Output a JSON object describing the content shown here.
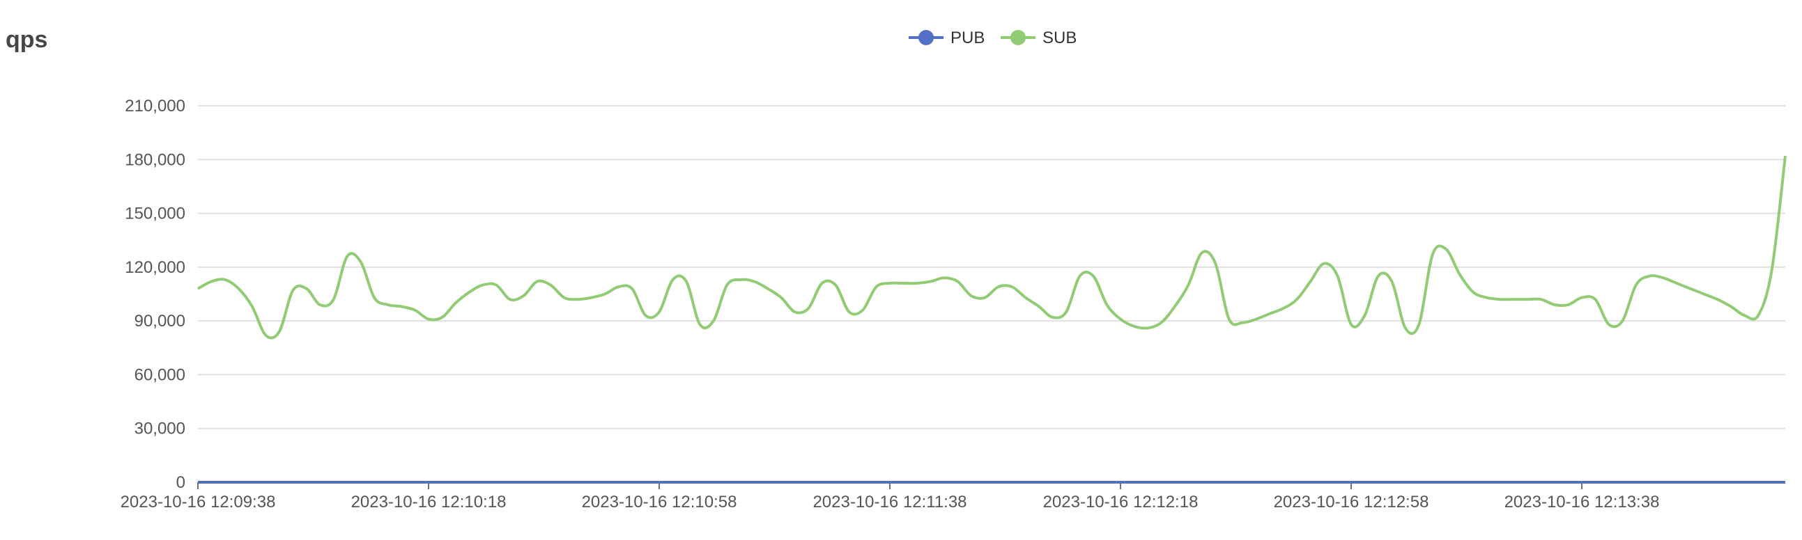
{
  "chart_data": {
    "type": "line",
    "title": "qps",
    "ylim": [
      0,
      210000
    ],
    "y_ticks": [
      "0",
      "30,000",
      "60,000",
      "90,000",
      "120,000",
      "150,000",
      "180,000",
      "210,000"
    ],
    "x_ticks": [
      "2023-10-16 12:09:38",
      "2023-10-16 12:10:18",
      "2023-10-16 12:10:58",
      "2023-10-16 12:11:38",
      "2023-10-16 12:12:18",
      "2023-10-16 12:12:58",
      "2023-10-16 12:13:38"
    ],
    "legend_position": "top-center",
    "grid": true,
    "series": [
      {
        "name": "PUB",
        "color": "#5470c6",
        "values": [
          0,
          0,
          0,
          0,
          0,
          0,
          0,
          0,
          0,
          0,
          0,
          0,
          0,
          0,
          0,
          0,
          0,
          0,
          0,
          0,
          0,
          0,
          0,
          0,
          0,
          0,
          0,
          0,
          0,
          0,
          0,
          0,
          0,
          0,
          0,
          0,
          0,
          0,
          0,
          0,
          0,
          0,
          0,
          0,
          0,
          0,
          0,
          0,
          0,
          0,
          0,
          0,
          0,
          0,
          0,
          0,
          0,
          0,
          0,
          0,
          0,
          0,
          0,
          0,
          0,
          0,
          0,
          0,
          0,
          0,
          0,
          0,
          0,
          0,
          0,
          0,
          0,
          0,
          0,
          0,
          0,
          0,
          0,
          0,
          0,
          0,
          0,
          0,
          0,
          0,
          0,
          0,
          0,
          0,
          0,
          0,
          0,
          0,
          0,
          0,
          0,
          0,
          0,
          0,
          0,
          0,
          0,
          0,
          0,
          0,
          0,
          0,
          0,
          0,
          0,
          0,
          0,
          0,
          0,
          0,
          0,
          0,
          0,
          0,
          0,
          0,
          0,
          0,
          0,
          0,
          0,
          0,
          0,
          0,
          0,
          0,
          0,
          0,
          0
        ]
      },
      {
        "name": "SUB",
        "color": "#91cc75",
        "values": [
          108000,
          112000,
          113000,
          108000,
          98000,
          82000,
          84000,
          107000,
          108000,
          99000,
          102000,
          126000,
          123000,
          103000,
          99000,
          98000,
          96000,
          91000,
          92000,
          100000,
          106000,
          110000,
          110000,
          102000,
          104000,
          112000,
          110000,
          103000,
          102000,
          103000,
          105000,
          109000,
          108000,
          93000,
          95000,
          113000,
          112000,
          88000,
          90000,
          110000,
          113000,
          112000,
          108000,
          103000,
          95000,
          97000,
          111000,
          110000,
          95000,
          96000,
          109000,
          111000,
          111000,
          111000,
          112000,
          114000,
          112000,
          104000,
          103000,
          109000,
          109000,
          103000,
          98000,
          92000,
          95000,
          115000,
          115000,
          99000,
          91000,
          87000,
          86000,
          89000,
          98000,
          110000,
          128000,
          122000,
          91000,
          89000,
          91000,
          94000,
          97000,
          102000,
          112000,
          122000,
          115000,
          88000,
          93000,
          115000,
          112000,
          86000,
          88000,
          127000,
          130000,
          116000,
          106000,
          103000,
          102000,
          102000,
          102000,
          102000,
          99000,
          99000,
          103000,
          102000,
          88000,
          90000,
          110000,
          115000,
          114000,
          111000,
          108000,
          105000,
          102000,
          98000,
          93000,
          93000,
          118000,
          182000
        ]
      }
    ]
  }
}
